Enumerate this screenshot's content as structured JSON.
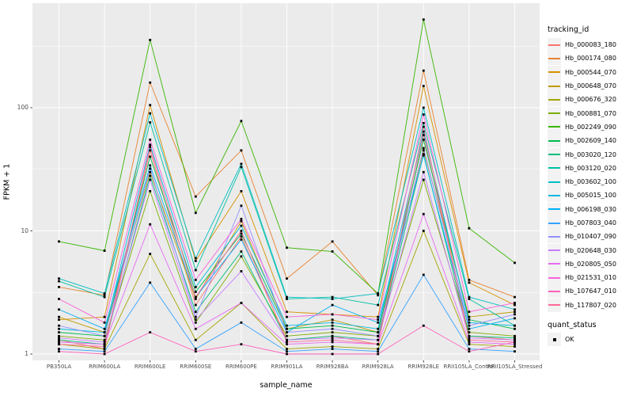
{
  "figure": {
    "bg": "#FFFFFF",
    "panel_bg": "#EBEBEB",
    "grid_color": "#FFFFFF",
    "tick_color": "#333333",
    "tick_label_color": "#4D4D4D",
    "point_color": "#000000"
  },
  "axes": {
    "x_title": "sample_name",
    "y_title": "FPKM + 1",
    "y_tick_labels": [
      "100",
      "10",
      "1"
    ],
    "y_tick_values": [
      100,
      10,
      1
    ]
  },
  "legend": {
    "tracking_title": "tracking_id",
    "quant_title": "quant_status",
    "quant_items": [
      {
        "label": "OK",
        "shape": "black-square-point"
      }
    ]
  },
  "chart_data": {
    "type": "line",
    "x_axis": "sample_name",
    "y_axis": "FPKM + 1",
    "y_scale": "log10",
    "ylim": [
      0.9,
      700
    ],
    "y_major_ticks": [
      1,
      10,
      100
    ],
    "y_minor_ticks": [
      3.1623,
      31.623,
      316.23
    ],
    "grid": true,
    "legend_position": "right",
    "point_shape": "small black square (quant_status = OK)",
    "categories": [
      "PB350LA",
      "RRIM600LA",
      "RRIM600LE",
      "RRIM600SE",
      "RRIM600PE",
      "RRIM901LA",
      "RRIM928BA",
      "RRIM928LA",
      "RRIM928LE",
      "RRII105LA_Control",
      "RRII105LA_Stressed"
    ],
    "series": [
      {
        "name": "Hb_000083_180",
        "color": "#F8766D",
        "values": [
          1.3,
          1.1,
          45,
          2.5,
          9,
          1.3,
          1.4,
          1.2,
          60,
          1.4,
          1.3
        ]
      },
      {
        "name": "Hb_000174_080",
        "color": "#EA8331",
        "values": [
          3.5,
          3.0,
          160,
          19,
          45,
          4.1,
          8.2,
          3.0,
          200,
          4.0,
          2.9
        ]
      },
      {
        "name": "Hb_000544_070",
        "color": "#D89000",
        "values": [
          1.9,
          2.0,
          105,
          5.7,
          21,
          2.2,
          2.1,
          2.0,
          150,
          3.8,
          2.5
        ]
      },
      {
        "name": "Hb_000648_070",
        "color": "#C09B00",
        "values": [
          2.0,
          1.5,
          30,
          2.8,
          12,
          1.6,
          1.9,
          1.5,
          45,
          2.0,
          2.2
        ]
      },
      {
        "name": "Hb_000676_320",
        "color": "#A3A500",
        "values": [
          1.2,
          1.1,
          6.5,
          1.3,
          2.6,
          1.1,
          1.15,
          1.1,
          10,
          1.2,
          1.15
        ]
      },
      {
        "name": "Hb_000881_070",
        "color": "#7CAE00",
        "values": [
          1.4,
          1.3,
          21,
          1.8,
          6.2,
          1.4,
          1.5,
          1.4,
          26,
          1.5,
          1.4
        ]
      },
      {
        "name": "Hb_002249_090",
        "color": "#39B600",
        "values": [
          8.2,
          6.9,
          355,
          14,
          78,
          7.3,
          6.8,
          3.1,
          520,
          10.5,
          5.5
        ]
      },
      {
        "name": "Hb_002609_140",
        "color": "#00BB4E",
        "values": [
          1.5,
          1.4,
          40,
          3.2,
          9.5,
          1.6,
          1.7,
          1.5,
          55,
          1.9,
          1.6
        ]
      },
      {
        "name": "Hb_003020_120",
        "color": "#00BF7D",
        "values": [
          1.3,
          1.2,
          28,
          2.2,
          6.8,
          1.3,
          1.4,
          1.3,
          42,
          1.4,
          1.35
        ]
      },
      {
        "name": "Hb_003120_020",
        "color": "#00C1A3",
        "values": [
          3.9,
          2.9,
          76,
          4.8,
          33,
          2.8,
          2.9,
          2.5,
          75,
          2.8,
          1.7
        ]
      },
      {
        "name": "Hb_003602_100",
        "color": "#00BFC4",
        "values": [
          4.1,
          3.1,
          90,
          6.0,
          35,
          2.9,
          2.8,
          3.1,
          100,
          2.9,
          2.3
        ]
      },
      {
        "name": "Hb_005015_100",
        "color": "#00BAE0",
        "values": [
          1.6,
          1.5,
          50,
          3.5,
          11,
          1.7,
          1.8,
          1.6,
          64,
          1.8,
          1.7
        ]
      },
      {
        "name": "Hb_006198_030",
        "color": "#00B0F6",
        "values": [
          2.3,
          1.6,
          34,
          2.9,
          8.5,
          1.5,
          2.5,
          1.8,
          41,
          1.6,
          1.95
        ]
      },
      {
        "name": "Hb_007803_040",
        "color": "#35A2FF",
        "values": [
          1.1,
          1.05,
          3.8,
          1.1,
          1.8,
          1.05,
          1.1,
          1.05,
          4.4,
          1.1,
          1.05
        ]
      },
      {
        "name": "Hb_010407_090",
        "color": "#9590FF",
        "values": [
          1.7,
          1.4,
          32,
          2.0,
          16,
          1.5,
          1.6,
          1.4,
          47,
          1.7,
          2.1
        ]
      },
      {
        "name": "Hb_020648_030",
        "color": "#C77CFF",
        "values": [
          1.35,
          1.25,
          26,
          1.9,
          4.7,
          1.3,
          1.35,
          1.3,
          30,
          1.35,
          1.3
        ]
      },
      {
        "name": "Hb_020805_050",
        "color": "#E76BF3",
        "values": [
          1.25,
          1.2,
          11.3,
          1.6,
          2.6,
          1.2,
          1.25,
          1.2,
          13.7,
          1.25,
          1.2
        ]
      },
      {
        "name": "Hb_021531_010",
        "color": "#FA62DB",
        "values": [
          2.8,
          1.8,
          55,
          4.0,
          12.5,
          2.0,
          2.1,
          1.9,
          88,
          2.2,
          2.6
        ]
      },
      {
        "name": "Hb_107647_010",
        "color": "#FF62BC",
        "values": [
          1.05,
          1.0,
          1.5,
          1.05,
          1.2,
          1.0,
          1.0,
          1.0,
          1.7,
          1.05,
          1.25
        ]
      },
      {
        "name": "Hb_117807_020",
        "color": "#FF6A98",
        "values": [
          1.2,
          1.15,
          48,
          2.9,
          10,
          1.25,
          1.3,
          1.2,
          70,
          1.3,
          1.25
        ]
      }
    ]
  }
}
